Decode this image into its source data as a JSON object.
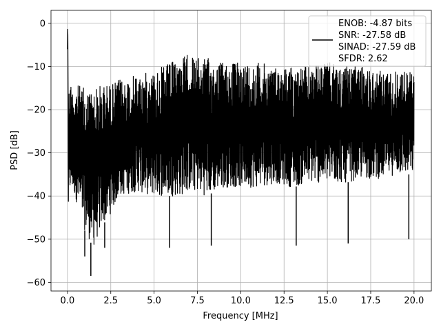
{
  "chart_data": {
    "type": "line",
    "title": "",
    "xlabel": "Frequency [MHz]",
    "ylabel": "PSD [dB]",
    "xlim": [
      -0.95,
      21
    ],
    "ylim": [
      -62,
      3
    ],
    "xticks": [
      0.0,
      2.5,
      5.0,
      7.5,
      10.0,
      12.5,
      15.0,
      17.5,
      20.0
    ],
    "xtick_labels": [
      "0.0",
      "2.5",
      "5.0",
      "7.5",
      "10.0",
      "12.5",
      "15.0",
      "17.5",
      "20.0"
    ],
    "yticks": [
      0,
      -10,
      -20,
      -30,
      -40,
      -50,
      -60
    ],
    "ytick_labels": [
      "0",
      "−10",
      "−20",
      "−30",
      "−40",
      "−50",
      "−60"
    ],
    "grid": true,
    "line_color": "#000000",
    "legend": {
      "placement": "top-right",
      "entries": [
        "ENOB: -4.87 bits",
        "SNR: -27.58 dB",
        "SINAD: -27.59 dB",
        "SFDR: 2.62"
      ]
    },
    "series": [
      {
        "x": [
          0.0,
          0.02,
          0.05,
          0.1,
          0.3,
          0.5,
          1.0,
          1.5,
          2.0,
          2.5,
          3.0,
          4.0,
          5.0,
          6.0,
          6.5,
          7.0,
          7.5,
          8.0,
          9.0,
          10.0,
          11.0,
          12.0,
          13.0,
          14.0,
          15.0,
          16.0,
          17.0,
          18.0,
          19.0,
          20.0
        ],
        "y": [
          -6,
          0,
          -27,
          -12,
          -15,
          -14,
          -15,
          -15,
          -14,
          -14,
          -13,
          -12,
          -11,
          -9,
          -8,
          -7,
          -8,
          -8,
          -9,
          -9,
          -9,
          -10,
          -10,
          -10,
          -9,
          -10,
          -10,
          -11,
          -11,
          -11
        ],
        "y_low": [
          -38,
          -41,
          -44,
          -40,
          -39,
          -41,
          -48,
          -52,
          -47,
          -44,
          -40,
          -39,
          -40,
          -40,
          -40,
          -39,
          -39,
          -40,
          -38,
          -38,
          -38,
          -37,
          -38,
          -37,
          -37,
          -37,
          -36,
          -36,
          -35,
          -35
        ],
        "dips": [
          {
            "x": 1.0,
            "y": -54
          },
          {
            "x": 1.35,
            "y": -58.5
          },
          {
            "x": 2.15,
            "y": -52
          },
          {
            "x": 5.9,
            "y": -52
          },
          {
            "x": 8.3,
            "y": -51.5
          },
          {
            "x": 13.2,
            "y": -51.5
          },
          {
            "x": 16.2,
            "y": -51
          },
          {
            "x": 19.7,
            "y": -50
          }
        ]
      }
    ]
  }
}
